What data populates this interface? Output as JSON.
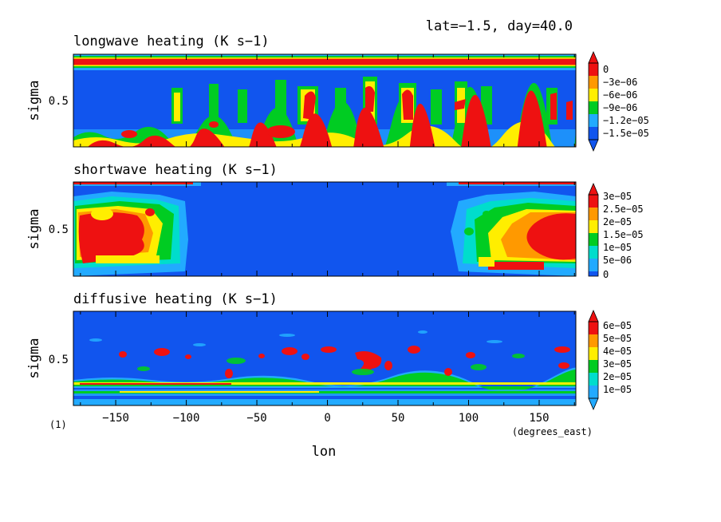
{
  "header": {
    "info": "lat=−1.5, day=40.0",
    "figure_number": "(1)"
  },
  "colors": {
    "red": "#ee1111",
    "orange": "#ff9900",
    "yellow": "#ffee00",
    "green": "#00cc22",
    "cyan": "#00ddcc",
    "lightblue": "#22aaff",
    "blue": "#1155ee"
  },
  "chart_data": [
    {
      "type": "heatmap",
      "title": "longwave heating (K s−1)",
      "ylabel": "sigma",
      "yticks": [
        "0.5"
      ],
      "xlim": [
        -180,
        176
      ],
      "colorbar": [
        "0",
        "−3e−06",
        "−6e−06",
        "−9e−06",
        "−1.2e−05",
        "−1.5e−05"
      ]
    },
    {
      "type": "heatmap",
      "title": "shortwave heating (K s−1)",
      "ylabel": "sigma",
      "yticks": [
        "0.5"
      ],
      "xlim": [
        -180,
        176
      ],
      "colorbar": [
        "3e−05",
        "2.5e−05",
        "2e−05",
        "1.5e−05",
        "1e−05",
        "5e−06",
        "0"
      ]
    },
    {
      "type": "heatmap",
      "title": "diffusive heating (K s−1)",
      "ylabel": "sigma",
      "yticks": [
        "0.5"
      ],
      "xlabel": "lon",
      "xunits": "(degrees_east)",
      "xticks": [
        "−150",
        "−100",
        "−50",
        "0",
        "50",
        "100",
        "150"
      ],
      "xtick_values": [
        -150,
        -100,
        -50,
        0,
        50,
        100,
        150
      ],
      "xlim": [
        -180,
        176
      ],
      "colorbar": [
        "6e−05",
        "5e−05",
        "4e−05",
        "3e−05",
        "2e−05",
        "1e−05"
      ]
    }
  ]
}
